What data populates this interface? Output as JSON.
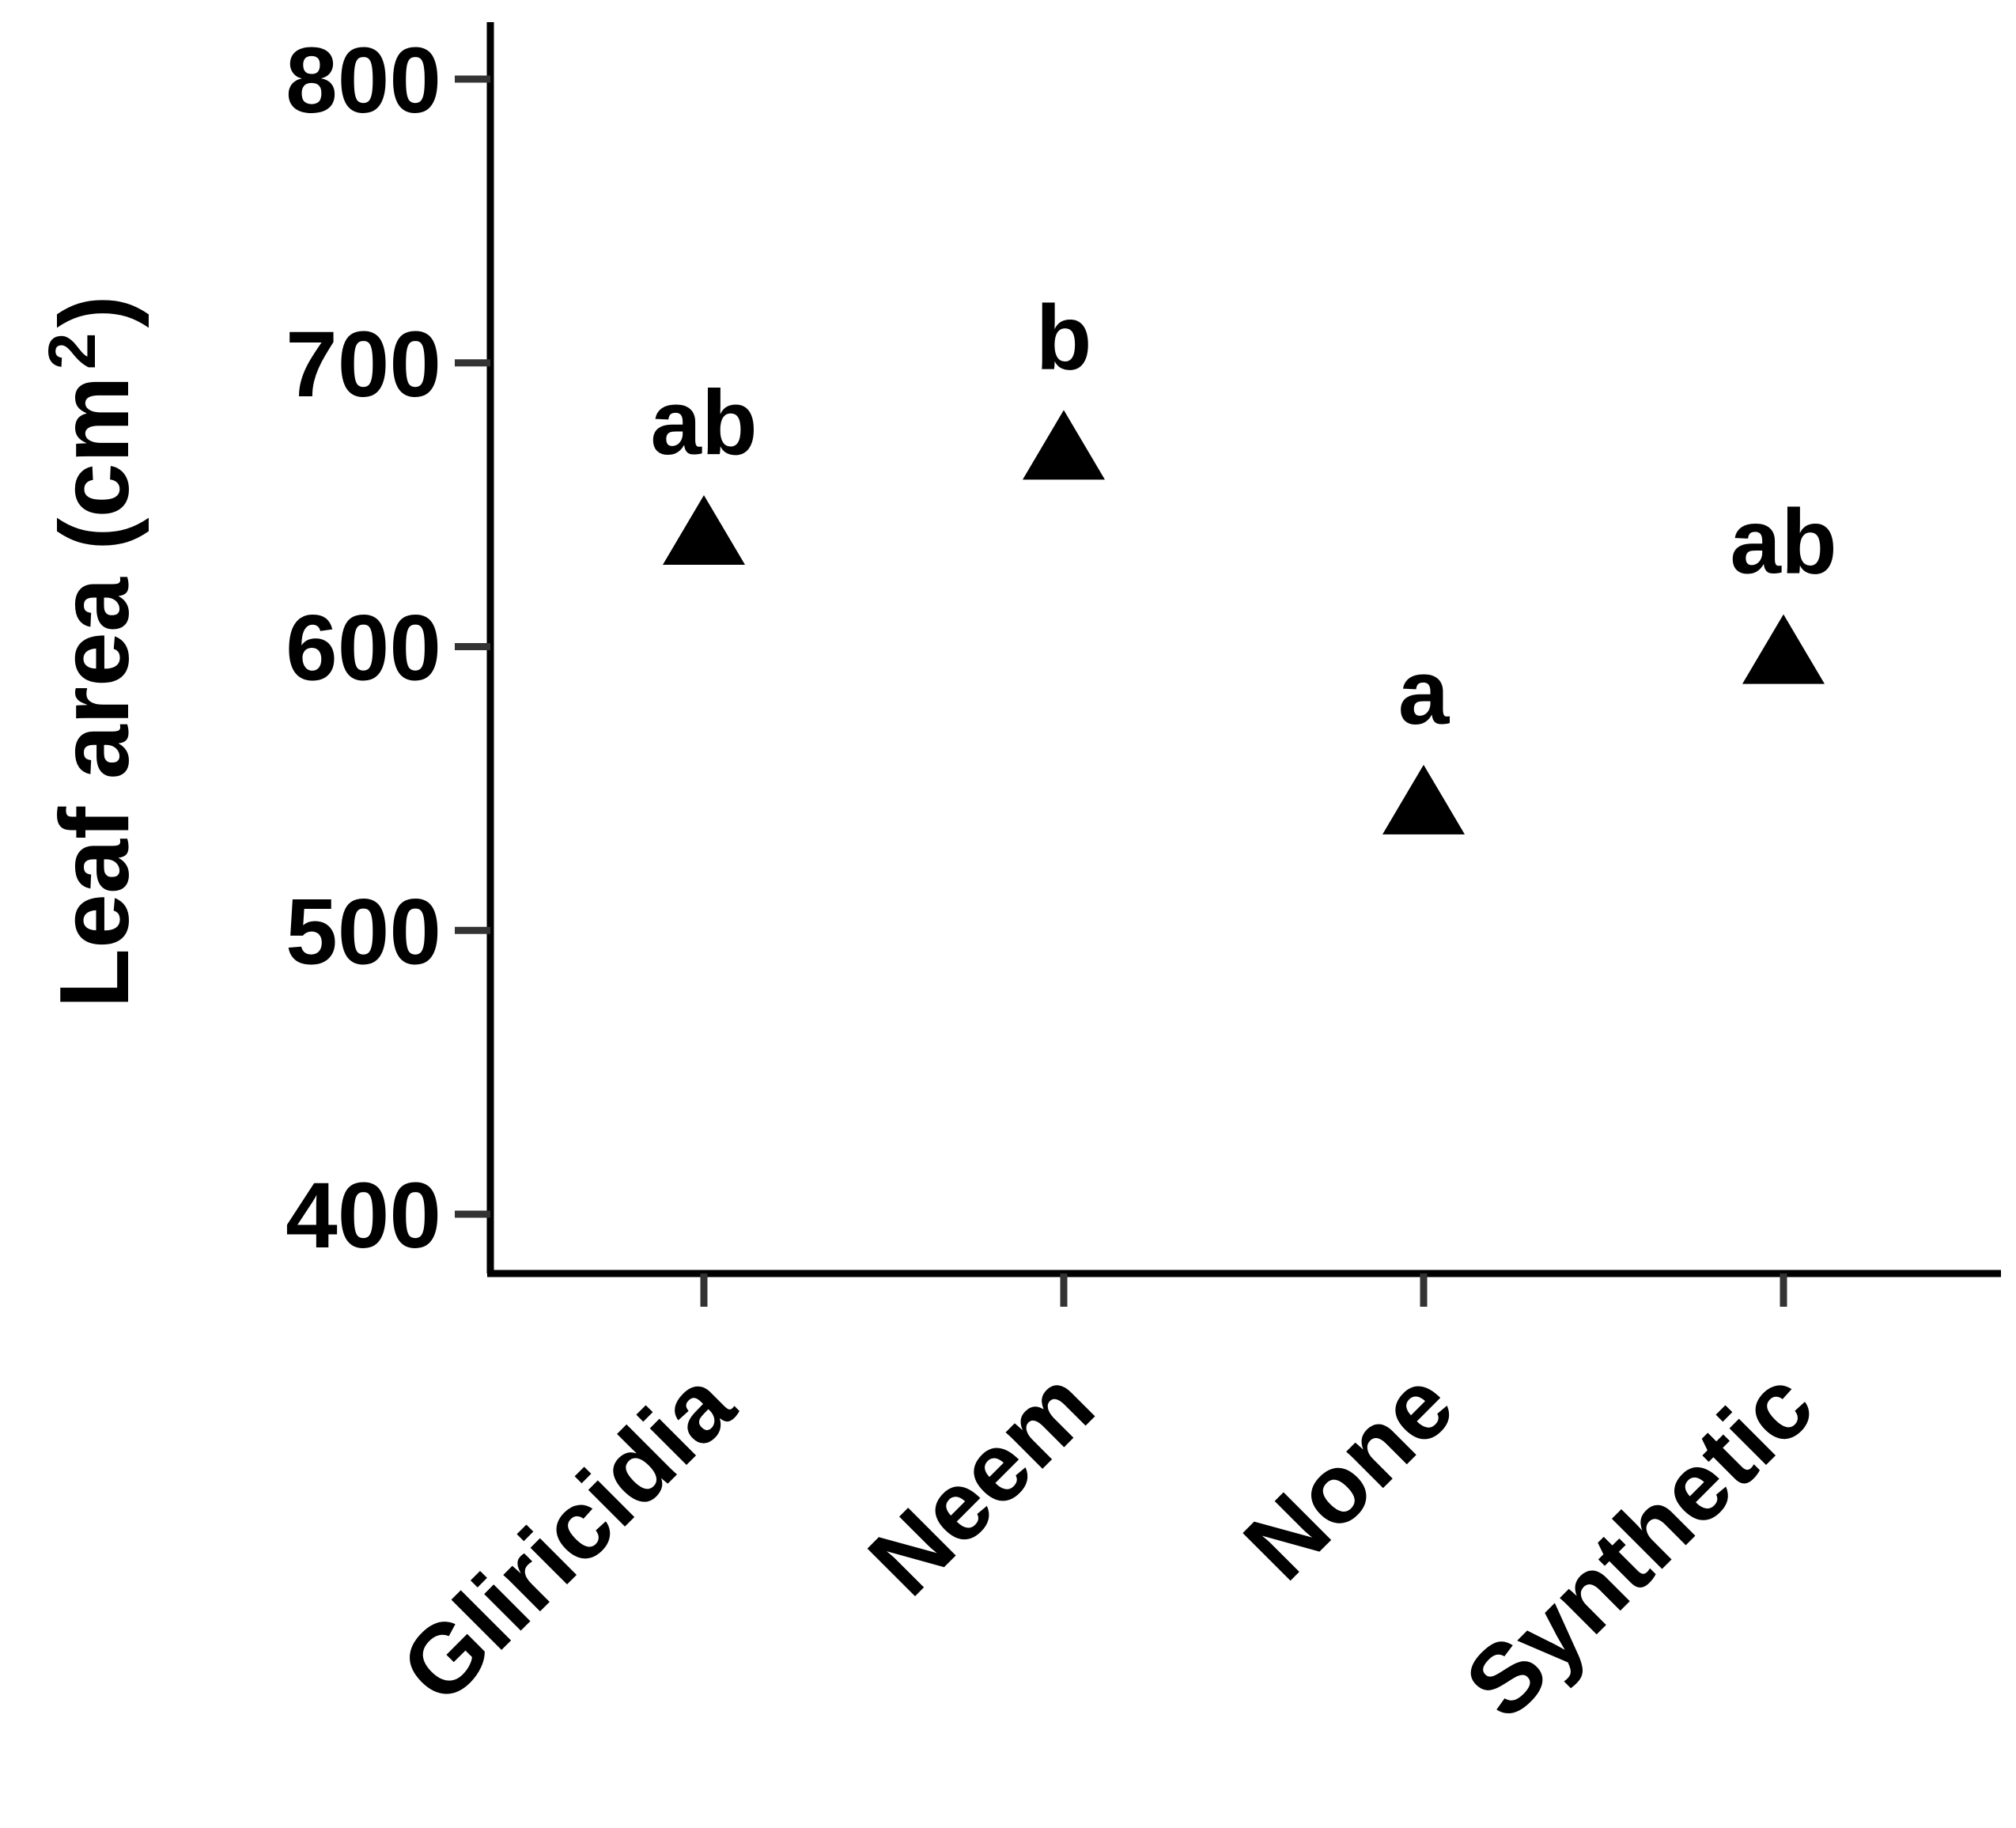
{
  "chart_data": {
    "type": "scatter",
    "title": "",
    "xlabel": "",
    "ylabel": "Leaf area (cm",
    "ylabel_superscript": "2",
    "ylabel_close": ")",
    "categories": [
      "Gliricidia",
      "Neem",
      "None",
      "Synthetic"
    ],
    "values": [
      640,
      670,
      545,
      598
    ],
    "significance_letters": [
      "ab",
      "b",
      "a",
      "ab"
    ],
    "marker": "triangle",
    "marker_color": "#000000",
    "ylim": [
      380,
      820
    ],
    "yticks": [
      400,
      500,
      600,
      700,
      800
    ],
    "grid": false,
    "legend": "none"
  }
}
